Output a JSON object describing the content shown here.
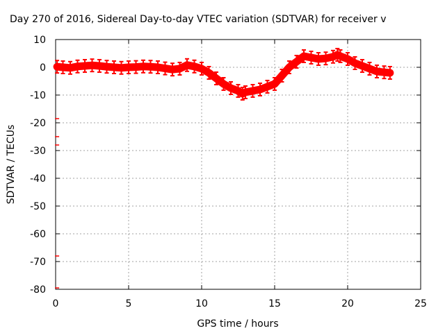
{
  "chart_data": {
    "type": "scatter",
    "title": "Day 270 of 2016, Sidereal Day-to-day VTEC variation (SDTVAR) for receiver v",
    "xlabel": "GPS time / hours",
    "ylabel": "SDTVAR / TECUs",
    "xlim": [
      0,
      25
    ],
    "ylim": [
      -80,
      10
    ],
    "xticks": [
      0,
      5,
      10,
      15,
      20,
      25
    ],
    "yticks": [
      10,
      0,
      -10,
      -20,
      -30,
      -40,
      -50,
      -60,
      -70,
      -80
    ],
    "grid": true,
    "legend": "none",
    "series_color": "#ff0000",
    "series": [
      {
        "x": [
          0.1,
          0.5,
          1.0,
          1.5,
          2.0,
          2.5,
          3.0,
          3.5,
          4.0,
          4.5,
          5.0,
          5.5,
          6.0,
          6.5,
          7.0,
          7.5,
          8.0,
          8.5,
          9.0,
          9.5,
          10.0,
          10.5,
          11.0,
          11.5,
          12.0,
          12.5,
          12.8,
          13.0,
          13.5,
          14.0,
          14.5,
          15.0,
          15.5,
          16.0,
          16.5,
          17.0,
          17.5,
          18.0,
          18.5,
          19.0,
          19.3,
          19.5,
          20.0,
          20.5,
          21.0,
          21.5,
          22.0,
          22.5,
          22.9
        ],
        "y": [
          0.2,
          0.0,
          -0.2,
          0.3,
          0.5,
          0.7,
          0.5,
          0.2,
          0.0,
          -0.2,
          0.0,
          0.1,
          0.3,
          0.2,
          0.0,
          -0.4,
          -0.8,
          -0.5,
          0.8,
          0.3,
          -0.5,
          -2.0,
          -4.0,
          -6.0,
          -7.5,
          -8.5,
          -9.5,
          -9.0,
          -8.5,
          -8.0,
          -7.0,
          -6.0,
          -3.0,
          0.0,
          2.0,
          4.0,
          3.5,
          3.0,
          3.2,
          3.8,
          4.5,
          4.0,
          3.0,
          1.5,
          0.5,
          -0.5,
          -1.5,
          -1.8,
          -2.0
        ]
      },
      {
        "x": [
          0.1,
          0.1,
          0.1,
          0.1,
          0.1
        ],
        "y": [
          -18.5,
          -25.0,
          -28.0,
          -68.0,
          -79.5
        ]
      }
    ]
  }
}
